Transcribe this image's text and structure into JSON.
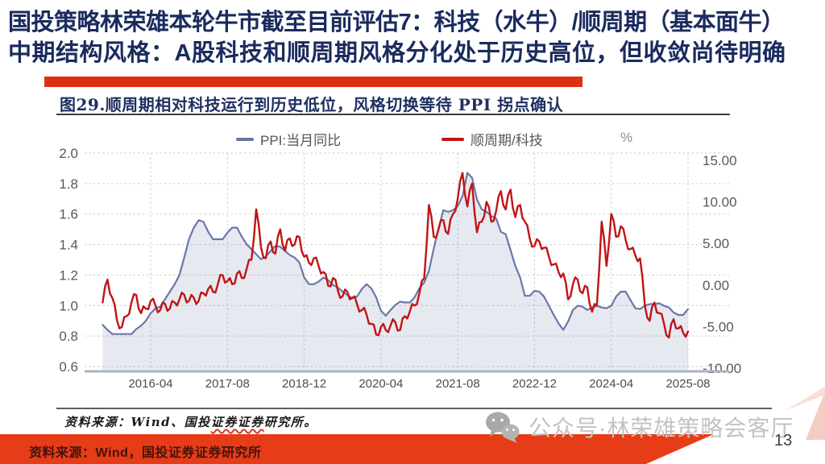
{
  "header": {
    "title_line1": "国投策略林荣雄本轮牛市截至目前评估7：科技（水牛）/顺周期（基本面牛）",
    "title_line2": "中期结构风格：A股科技和顺周期风格分化处于历史高位，但收敛尚待明确"
  },
  "figure": {
    "title": "图29.顺周期相对科技运行到历史低位，风格切换等待 PPI 拐点确认",
    "source_prefix": "资料来源：Wind、国投",
    "source_wavy": "证券证券",
    "source_suffix": "研究所。"
  },
  "chart_data": {
    "type": "line",
    "title": "顺周期相对科技运行到历史低位，风格切换等待PPI拐点确认",
    "x_start": "2015-06",
    "x_frequency": "monthly",
    "x_tick_labels": [
      "2016-04",
      "2017-08",
      "2018-12",
      "2020-04",
      "2021-08",
      "2022-12",
      "2024-04",
      "2025-08"
    ],
    "x_tick_indices": [
      10,
      26,
      42,
      58,
      74,
      90,
      106,
      122
    ],
    "grid": true,
    "legend_position": "top",
    "left_axis": {
      "min": 0.6,
      "max": 2.0,
      "ticks": [
        "2.0",
        "1.8",
        "1.6",
        "1.4",
        "1.2",
        "1.0",
        "0.8",
        "0.6"
      ]
    },
    "right_axis": {
      "min": -10,
      "max": 15,
      "unit": "%",
      "ticks": [
        "15.00",
        "10.00",
        "5.00",
        "0.00",
        "-5.00",
        "-10.00"
      ]
    },
    "series": [
      {
        "name": "PPI:当月同比",
        "axis": "right",
        "color": "#6b77a8",
        "style": "area-line",
        "fill": "rgba(107,119,168,0.16)",
        "values": [
          -4.8,
          -5.4,
          -5.9,
          -5.9,
          -5.9,
          -5.9,
          -5.9,
          -5.3,
          -4.9,
          -4.3,
          -3.4,
          -2.8,
          -2.6,
          -1.7,
          -0.8,
          0.1,
          1.2,
          3.3,
          5.5,
          6.9,
          7.8,
          7.6,
          6.4,
          5.5,
          5.5,
          5.5,
          6.3,
          6.9,
          6.9,
          5.8,
          4.9,
          4.3,
          3.7,
          3.1,
          3.4,
          4.1,
          4.7,
          4.6,
          4.1,
          3.6,
          3.3,
          2.7,
          0.9,
          0.1,
          0.1,
          0.4,
          0.9,
          0.6,
          0.0,
          -0.3,
          -0.8,
          -1.2,
          -1.6,
          -1.4,
          -0.5,
          0.1,
          -0.4,
          -1.5,
          -3.1,
          -3.7,
          -3.0,
          -2.4,
          -2.0,
          -2.1,
          -2.1,
          -1.5,
          -0.4,
          0.3,
          1.7,
          4.4,
          6.8,
          9.0,
          8.8,
          9.0,
          9.5,
          10.7,
          13.5,
          12.9,
          10.3,
          9.1,
          8.8,
          8.3,
          8.0,
          6.4,
          6.1,
          4.2,
          2.3,
          0.9,
          -1.3,
          -1.3,
          -0.7,
          -0.8,
          -1.4,
          -2.5,
          -3.6,
          -4.6,
          -5.4,
          -4.4,
          -3.0,
          -2.5,
          -2.6,
          -3.0,
          -2.7,
          -2.5,
          -2.7,
          -2.8,
          -2.5,
          -1.4,
          -0.8,
          -0.8,
          -1.8,
          -2.8,
          -2.9,
          -2.5,
          -2.3,
          -2.3,
          -2.2,
          -2.5,
          -2.7,
          -3.3,
          -3.6,
          -3.6,
          -2.9
        ]
      },
      {
        "name": "顺周期/科技",
        "axis": "left",
        "color": "#c11414",
        "style": "line",
        "jitter": 0.03,
        "values": [
          1.02,
          1.17,
          1.05,
          0.9,
          0.86,
          0.93,
          1.02,
          1.07,
          0.95,
          0.98,
          1.03,
          1.0,
          0.97,
          1.01,
          0.98,
          1.02,
          1.04,
          1.07,
          1.03,
          1.05,
          1.03,
          1.08,
          1.11,
          1.09,
          1.14,
          1.2,
          1.16,
          1.14,
          1.21,
          1.18,
          1.24,
          1.3,
          1.63,
          1.38,
          1.31,
          1.42,
          1.34,
          1.5,
          1.36,
          1.44,
          1.4,
          1.45,
          1.32,
          1.28,
          1.31,
          1.26,
          1.22,
          1.13,
          1.18,
          1.1,
          1.06,
          1.09,
          1.05,
          1.01,
          0.97,
          0.94,
          0.88,
          0.81,
          0.86,
          0.84,
          0.87,
          0.89,
          0.84,
          0.93,
          0.96,
          1.0,
          1.08,
          1.18,
          1.66,
          1.45,
          1.5,
          1.56,
          1.47,
          1.6,
          1.7,
          1.87,
          1.65,
          1.8,
          1.48,
          1.55,
          1.68,
          1.55,
          1.62,
          1.75,
          1.63,
          1.76,
          1.58,
          1.66,
          1.55,
          1.44,
          1.39,
          1.42,
          1.38,
          1.32,
          1.27,
          1.22,
          1.21,
          1.04,
          1.14,
          1.17,
          1.08,
          1.12,
          0.96,
          1.0,
          1.55,
          1.26,
          1.6,
          1.45,
          1.52,
          1.43,
          1.37,
          1.33,
          1.31,
          1.0,
          0.9,
          1.02,
          0.95,
          0.88,
          0.79,
          0.91,
          0.85,
          0.82,
          0.83
        ]
      }
    ]
  },
  "watermark": {
    "text": "公众号·林荣雄策略会客厅"
  },
  "footer": {
    "source_text": "资料来源：Wind，国投证券证券研究所",
    "page_number": "13"
  },
  "colors": {
    "accent_red": "#de2f10",
    "footer_red": "#e63c17",
    "navy": "#1a2b5d",
    "line_red": "#c11414",
    "line_blue": "#6b77a8"
  }
}
